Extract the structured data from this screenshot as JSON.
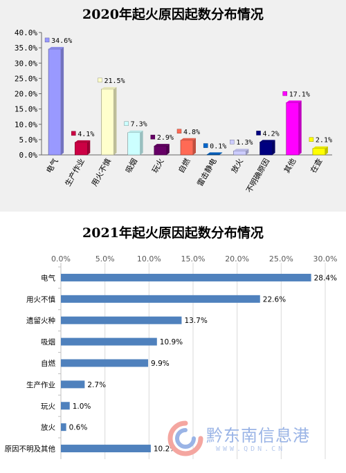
{
  "chart_data": [
    {
      "type": "bar",
      "title": "2020年起火原因起数分布情况",
      "categories": [
        "电气",
        "生产作业",
        "用火不慎",
        "吸烟",
        "玩火",
        "自燃",
        "雷击静电",
        "放火",
        "不明确原因",
        "其他",
        "在查"
      ],
      "values": [
        34.6,
        4.1,
        21.5,
        7.3,
        2.9,
        4.8,
        0.1,
        1.3,
        4.2,
        17.1,
        2.1
      ],
      "value_labels": [
        "34.6%",
        "4.1%",
        "21.5%",
        "7.3%",
        "2.9%",
        "4.8%",
        "0.1%",
        "1.3%",
        "4.2%",
        "17.1%",
        "2.1%"
      ],
      "colors": [
        "#9999ff",
        "#cc0044",
        "#ffffcc",
        "#ccffff",
        "#660066",
        "#ff6a55",
        "#0066cc",
        "#ccccff",
        "#000080",
        "#ff00ff",
        "#ffff00"
      ],
      "ylim": [
        0,
        40
      ],
      "yticks": [
        "0.0%",
        "5.0%",
        "10.0%",
        "15.0%",
        "20.0%",
        "25.0%",
        "30.0%",
        "35.0%",
        "40.0%"
      ],
      "orientation": "vertical",
      "grid": false
    },
    {
      "type": "bar",
      "title": "2021年起火原因起数分布情况",
      "categories": [
        "电气",
        "用火不慎",
        "遗留火种",
        "吸烟",
        "自燃",
        "生产作业",
        "玩火",
        "放火",
        "原因不明及其他"
      ],
      "values": [
        28.4,
        22.6,
        13.7,
        10.9,
        9.9,
        2.7,
        1.0,
        0.6,
        10.2
      ],
      "value_labels": [
        "28.4%",
        "22.6%",
        "13.7%",
        "10.9%",
        "9.9%",
        "2.7%",
        "1.0%",
        "0.6%",
        "10.2%"
      ],
      "colors": [
        "#4f81bd"
      ],
      "xlim": [
        0,
        30
      ],
      "xticks": [
        "0.0%",
        "5.0%",
        "10.0%",
        "15.0%",
        "20.0%",
        "25.0%",
        "30.0%"
      ],
      "orientation": "horizontal",
      "axis_position": "top",
      "grid": true
    }
  ],
  "watermark": {
    "text": "黔东南信息港",
    "url": "WWW.QDN.CN"
  }
}
